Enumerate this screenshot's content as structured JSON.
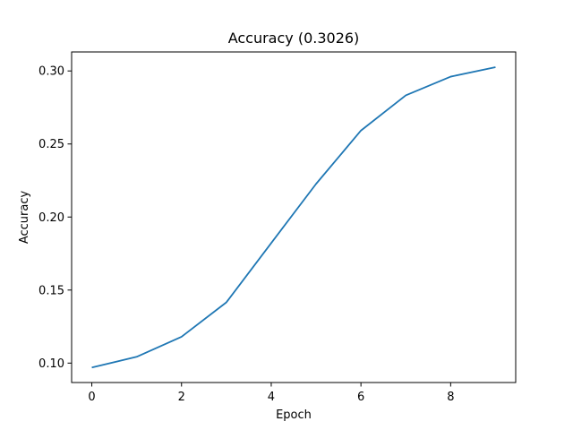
{
  "chart_data": {
    "type": "line",
    "title": "Accuracy (0.3026)",
    "xlabel": "Epoch",
    "ylabel": "Accuracy",
    "xlim": [
      -0.45,
      9.45
    ],
    "ylim": [
      0.0867,
      0.313
    ],
    "x_ticks": [
      0,
      2,
      4,
      6,
      8
    ],
    "x_tick_labels": [
      "0",
      "2",
      "4",
      "6",
      "8"
    ],
    "y_ticks": [
      0.1,
      0.15,
      0.2,
      0.25,
      0.3
    ],
    "y_tick_labels": [
      "0.10",
      "0.15",
      "0.20",
      "0.25",
      "0.30"
    ],
    "grid": false,
    "series": [
      {
        "x": [
          0,
          1,
          2,
          3,
          4,
          5,
          6,
          7,
          8,
          9
        ],
        "values": [
          0.097,
          0.1043,
          0.118,
          0.1416,
          0.1822,
          0.2227,
          0.2592,
          0.2833,
          0.2961,
          0.3026
        ],
        "color": "#1f77b4"
      }
    ]
  }
}
